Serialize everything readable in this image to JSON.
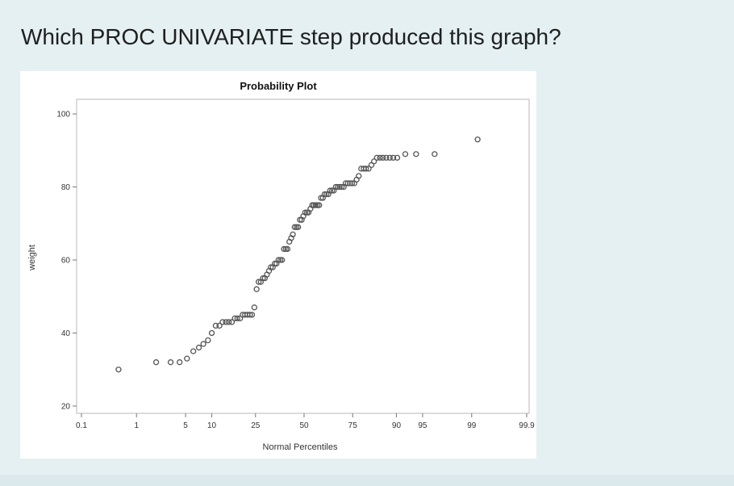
{
  "question": "Which PROC UNIVARIATE step produced this graph?",
  "chart_data": {
    "type": "scatter",
    "title": "Probability Plot",
    "xlabel": "Normal Percentiles",
    "ylabel": "weight",
    "xscale": "normal-probability",
    "xticks": [
      0.1,
      1,
      5,
      10,
      25,
      50,
      75,
      90,
      95,
      99,
      99.9
    ],
    "xtick_labels": [
      "0.1",
      "1",
      "5",
      "10",
      "25",
      "50",
      "75",
      "90",
      "95",
      "99",
      "99.9"
    ],
    "yticks": [
      20,
      40,
      60,
      80,
      100
    ],
    "ytick_labels": [
      "20",
      "40",
      "60",
      "80",
      "100"
    ],
    "ylim": [
      18,
      104
    ],
    "grid": false,
    "points": [
      {
        "x": 0.5,
        "y": 30
      },
      {
        "x": 2.0,
        "y": 32
      },
      {
        "x": 3.2,
        "y": 32
      },
      {
        "x": 4.2,
        "y": 32
      },
      {
        "x": 5.2,
        "y": 33
      },
      {
        "x": 6.2,
        "y": 35
      },
      {
        "x": 7.2,
        "y": 36
      },
      {
        "x": 8.1,
        "y": 37
      },
      {
        "x": 9.1,
        "y": 38
      },
      {
        "x": 10.0,
        "y": 40
      },
      {
        "x": 11.0,
        "y": 42
      },
      {
        "x": 12.0,
        "y": 42
      },
      {
        "x": 12.9,
        "y": 43
      },
      {
        "x": 13.9,
        "y": 43
      },
      {
        "x": 14.8,
        "y": 43
      },
      {
        "x": 15.8,
        "y": 43
      },
      {
        "x": 16.8,
        "y": 44
      },
      {
        "x": 17.7,
        "y": 44
      },
      {
        "x": 18.7,
        "y": 44
      },
      {
        "x": 19.7,
        "y": 45
      },
      {
        "x": 20.6,
        "y": 45
      },
      {
        "x": 21.6,
        "y": 45
      },
      {
        "x": 22.6,
        "y": 45
      },
      {
        "x": 23.5,
        "y": 45
      },
      {
        "x": 24.5,
        "y": 47
      },
      {
        "x": 25.5,
        "y": 52
      },
      {
        "x": 26.4,
        "y": 54
      },
      {
        "x": 27.4,
        "y": 54
      },
      {
        "x": 28.4,
        "y": 55
      },
      {
        "x": 29.3,
        "y": 55
      },
      {
        "x": 30.3,
        "y": 56
      },
      {
        "x": 31.3,
        "y": 57
      },
      {
        "x": 32.2,
        "y": 58
      },
      {
        "x": 33.2,
        "y": 58
      },
      {
        "x": 34.2,
        "y": 59
      },
      {
        "x": 35.1,
        "y": 59
      },
      {
        "x": 36.1,
        "y": 60
      },
      {
        "x": 37.1,
        "y": 60
      },
      {
        "x": 38.0,
        "y": 60
      },
      {
        "x": 39.0,
        "y": 63
      },
      {
        "x": 40.0,
        "y": 63
      },
      {
        "x": 40.9,
        "y": 63
      },
      {
        "x": 41.9,
        "y": 65
      },
      {
        "x": 42.9,
        "y": 66
      },
      {
        "x": 43.8,
        "y": 67
      },
      {
        "x": 44.8,
        "y": 69
      },
      {
        "x": 45.8,
        "y": 69
      },
      {
        "x": 46.7,
        "y": 69
      },
      {
        "x": 47.7,
        "y": 71
      },
      {
        "x": 48.7,
        "y": 71
      },
      {
        "x": 49.6,
        "y": 72
      },
      {
        "x": 50.6,
        "y": 73
      },
      {
        "x": 51.6,
        "y": 73
      },
      {
        "x": 52.5,
        "y": 73
      },
      {
        "x": 53.5,
        "y": 74
      },
      {
        "x": 54.5,
        "y": 75
      },
      {
        "x": 55.4,
        "y": 75
      },
      {
        "x": 56.4,
        "y": 75
      },
      {
        "x": 57.4,
        "y": 75
      },
      {
        "x": 58.3,
        "y": 75
      },
      {
        "x": 59.3,
        "y": 77
      },
      {
        "x": 60.3,
        "y": 77
      },
      {
        "x": 61.2,
        "y": 78
      },
      {
        "x": 62.2,
        "y": 78
      },
      {
        "x": 63.2,
        "y": 78
      },
      {
        "x": 64.1,
        "y": 79
      },
      {
        "x": 65.1,
        "y": 79
      },
      {
        "x": 66.0,
        "y": 79
      },
      {
        "x": 67.0,
        "y": 80
      },
      {
        "x": 68.0,
        "y": 80
      },
      {
        "x": 68.9,
        "y": 80
      },
      {
        "x": 69.9,
        "y": 80
      },
      {
        "x": 70.9,
        "y": 80
      },
      {
        "x": 71.8,
        "y": 81
      },
      {
        "x": 72.8,
        "y": 81
      },
      {
        "x": 73.8,
        "y": 81
      },
      {
        "x": 74.7,
        "y": 81
      },
      {
        "x": 75.7,
        "y": 81
      },
      {
        "x": 76.7,
        "y": 82
      },
      {
        "x": 77.6,
        "y": 83
      },
      {
        "x": 78.6,
        "y": 85
      },
      {
        "x": 79.6,
        "y": 85
      },
      {
        "x": 80.5,
        "y": 85
      },
      {
        "x": 81.5,
        "y": 85
      },
      {
        "x": 82.5,
        "y": 86
      },
      {
        "x": 83.4,
        "y": 87
      },
      {
        "x": 84.4,
        "y": 88
      },
      {
        "x": 85.4,
        "y": 88
      },
      {
        "x": 86.3,
        "y": 88
      },
      {
        "x": 87.3,
        "y": 88
      },
      {
        "x": 88.3,
        "y": 88
      },
      {
        "x": 89.2,
        "y": 88
      },
      {
        "x": 90.2,
        "y": 88
      },
      {
        "x": 92.0,
        "y": 89
      },
      {
        "x": 94.0,
        "y": 89
      },
      {
        "x": 96.5,
        "y": 89
      },
      {
        "x": 99.2,
        "y": 93
      }
    ]
  }
}
